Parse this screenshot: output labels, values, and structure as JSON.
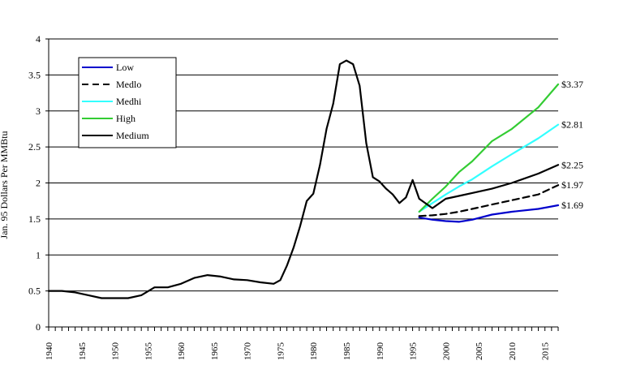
{
  "chart_data": {
    "type": "line",
    "title": "",
    "xlabel": "",
    "ylabel": "Jan. 95 Dollars Per MMBtu",
    "xlim": [
      1940,
      2017
    ],
    "ylim": [
      0,
      4
    ],
    "yticks": [
      0,
      0.5,
      1,
      1.5,
      2,
      2.5,
      3,
      3.5,
      4
    ],
    "ytick_labels": [
      "0",
      "0.5",
      "1",
      "1.5",
      "2",
      "2.5",
      "3",
      "3.5",
      "4"
    ],
    "xticks": [
      1940,
      1945,
      1950,
      1955,
      1960,
      1965,
      1970,
      1975,
      1980,
      1985,
      1990,
      1995,
      2000,
      2005,
      2010,
      2015
    ],
    "xtick_labels": [
      "1940",
      "1945",
      "1950",
      "1955",
      "1960",
      "1965",
      "1970",
      "1975",
      "1980",
      "1985",
      "1990",
      "1995",
      "2000",
      "2005",
      "2010",
      "2015"
    ],
    "grid": "horizontal",
    "legend": "top-left",
    "series": [
      {
        "name": "Low",
        "color": "#0000cc",
        "dash": "solid",
        "x": [
          1996,
          1998,
          2000,
          2002,
          2004,
          2007,
          2010,
          2014,
          2017
        ],
        "y": [
          1.52,
          1.49,
          1.47,
          1.46,
          1.49,
          1.56,
          1.6,
          1.64,
          1.69
        ]
      },
      {
        "name": "Medlo",
        "color": "#000000",
        "dash": "dashed",
        "x": [
          1996,
          1998,
          2000,
          2002,
          2004,
          2007,
          2010,
          2014,
          2017
        ],
        "y": [
          1.54,
          1.55,
          1.57,
          1.6,
          1.64,
          1.7,
          1.76,
          1.84,
          1.97
        ]
      },
      {
        "name": "Medhi",
        "color": "#33ffff",
        "dash": "solid",
        "x": [
          1996,
          1998,
          2000,
          2002,
          2004,
          2007,
          2010,
          2014,
          2017
        ],
        "y": [
          1.6,
          1.72,
          1.84,
          1.95,
          2.05,
          2.23,
          2.4,
          2.62,
          2.81
        ]
      },
      {
        "name": "High",
        "color": "#33cc33",
        "dash": "solid",
        "x": [
          1996,
          1998,
          2000,
          2002,
          2004,
          2007,
          2010,
          2014,
          2017
        ],
        "y": [
          1.6,
          1.78,
          1.95,
          2.15,
          2.3,
          2.58,
          2.75,
          3.05,
          3.37
        ]
      },
      {
        "name": "Medium",
        "color": "#000000",
        "dash": "solid",
        "x": [
          1940,
          1942,
          1944,
          1946,
          1948,
          1950,
          1952,
          1954,
          1956,
          1958,
          1960,
          1962,
          1964,
          1966,
          1968,
          1970,
          1972,
          1974,
          1975,
          1976,
          1977,
          1978,
          1979,
          1980,
          1981,
          1982,
          1983,
          1984,
          1985,
          1986,
          1987,
          1988,
          1989,
          1990,
          1991,
          1992,
          1993,
          1994,
          1995,
          1996,
          1998,
          2000,
          2002,
          2004,
          2007,
          2010,
          2014,
          2017
        ],
        "y": [
          0.5,
          0.5,
          0.48,
          0.44,
          0.4,
          0.4,
          0.4,
          0.44,
          0.55,
          0.55,
          0.6,
          0.68,
          0.72,
          0.7,
          0.66,
          0.65,
          0.62,
          0.6,
          0.65,
          0.85,
          1.1,
          1.4,
          1.75,
          1.85,
          2.25,
          2.75,
          3.1,
          3.65,
          3.7,
          3.65,
          3.35,
          2.55,
          2.08,
          2.02,
          1.92,
          1.84,
          1.72,
          1.8,
          2.04,
          1.78,
          1.65,
          1.78,
          1.82,
          1.86,
          1.92,
          2.0,
          2.13,
          2.25
        ]
      }
    ],
    "annotations": [
      {
        "text": "$3.37",
        "x": 2017,
        "y": 3.37
      },
      {
        "text": "$2.81",
        "x": 2017,
        "y": 2.81
      },
      {
        "text": "$2.25",
        "x": 2017,
        "y": 2.25
      },
      {
        "text": "$1.97",
        "x": 2017,
        "y": 1.97
      },
      {
        "text": "$1.69",
        "x": 2017,
        "y": 1.69
      }
    ]
  }
}
